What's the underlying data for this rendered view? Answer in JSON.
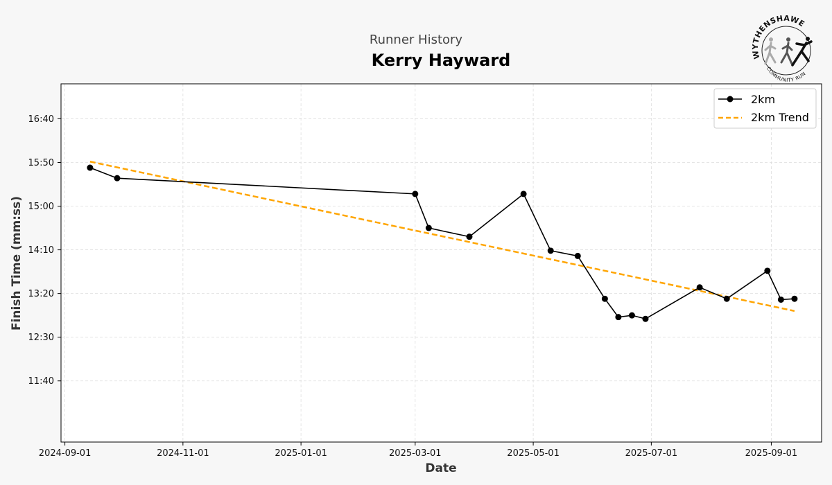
{
  "header": {
    "subtitle": "Runner History",
    "title": "Kerry Hayward"
  },
  "logo": {
    "name_text": "WYTHENSHAWE",
    "tagline": "COMMUNITY RUN"
  },
  "chart_data": {
    "type": "line",
    "title": "Kerry Hayward",
    "subtitle": "Runner History",
    "xlabel": "Date",
    "ylabel": "Finish Time (mm:ss)",
    "x_range": [
      "2024-08-30",
      "2025-09-27"
    ],
    "y_range_seconds": [
      630,
      1040
    ],
    "x_ticks": [
      "2024-09-01",
      "2024-11-01",
      "2025-01-01",
      "2025-03-01",
      "2025-05-01",
      "2025-07-01",
      "2025-09-01"
    ],
    "y_ticks": [
      "11:40",
      "12:30",
      "13:20",
      "14:10",
      "15:00",
      "15:50",
      "16:40"
    ],
    "grid": true,
    "legend_position": "top-right",
    "series": [
      {
        "name": "2km",
        "color": "#000000",
        "style": "solid-with-markers",
        "points": [
          {
            "date": "2024-09-14",
            "time": "15:44"
          },
          {
            "date": "2024-09-28",
            "time": "15:32"
          },
          {
            "date": "2025-03-01",
            "time": "15:14"
          },
          {
            "date": "2025-03-08",
            "time": "14:35"
          },
          {
            "date": "2025-03-29",
            "time": "14:25"
          },
          {
            "date": "2025-04-26",
            "time": "15:14"
          },
          {
            "date": "2025-05-10",
            "time": "14:09"
          },
          {
            "date": "2025-05-24",
            "time": "14:03"
          },
          {
            "date": "2025-06-07",
            "time": "13:14"
          },
          {
            "date": "2025-06-14",
            "time": "12:53"
          },
          {
            "date": "2025-06-21",
            "time": "12:55"
          },
          {
            "date": "2025-06-28",
            "time": "12:51"
          },
          {
            "date": "2025-07-26",
            "time": "13:27"
          },
          {
            "date": "2025-08-09",
            "time": "13:14"
          },
          {
            "date": "2025-08-30",
            "time": "13:46"
          },
          {
            "date": "2025-09-06",
            "time": "13:13"
          },
          {
            "date": "2025-09-13",
            "time": "13:14"
          }
        ]
      },
      {
        "name": "2km Trend",
        "color": "#FFA500",
        "style": "dashed",
        "points": [
          {
            "date": "2024-09-14",
            "time": "15:51"
          },
          {
            "date": "2025-09-13",
            "time": "13:00"
          }
        ]
      }
    ]
  }
}
